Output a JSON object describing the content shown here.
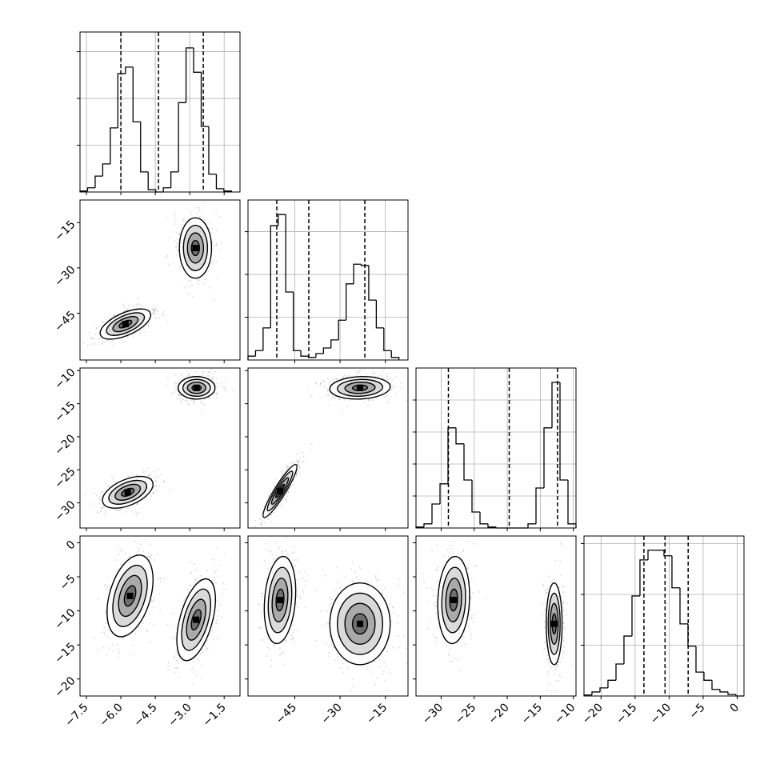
{
  "chart_data": {
    "type": "corner",
    "grid": true,
    "levels": [
      0.5,
      1,
      1.5,
      2
    ],
    "variables": [
      {
        "lim": [
          -7.78,
          -0.81
        ],
        "ticks": [
          {
            "value": -7.5,
            "label": "−7.5"
          },
          {
            "value": -6.0,
            "label": "−6.0"
          },
          {
            "value": -4.5,
            "label": "−4.5"
          },
          {
            "value": -3.0,
            "label": "−3.0"
          },
          {
            "value": -1.5,
            "label": "−1.5"
          }
        ]
      },
      {
        "lim": [
          -60.5,
          -7.5
        ],
        "ticks": [
          {
            "value": -45,
            "label": "−45"
          },
          {
            "value": -30,
            "label": "−30"
          },
          {
            "value": -15,
            "label": "−15"
          }
        ]
      },
      {
        "lim": [
          -33.8,
          -9.6
        ],
        "ticks": [
          {
            "value": -30,
            "label": "−30"
          },
          {
            "value": -25,
            "label": "−25"
          },
          {
            "value": -20,
            "label": "−20"
          },
          {
            "value": -15,
            "label": "−15"
          },
          {
            "value": -10,
            "label": "−10"
          }
        ]
      },
      {
        "lim": [
          -22.5,
          1.0
        ],
        "ticks": [
          {
            "value": -20,
            "label": "−20"
          },
          {
            "value": -15,
            "label": "−15"
          },
          {
            "value": -10,
            "label": "−10"
          },
          {
            "value": -5,
            "label": "−5"
          },
          0
        ]
      }
    ],
    "histograms": [
      {
        "bins": [
          -7.78,
          -7.45,
          -7.12,
          -6.79,
          -6.46,
          -6.13,
          -5.8,
          -5.47,
          -5.14,
          -4.81,
          -4.48,
          -4.15,
          -3.82,
          -3.49,
          -3.16,
          -2.83,
          -2.5,
          -2.17,
          -1.84,
          -1.51,
          -1.18
        ],
        "values": [
          0.02,
          0.09,
          0.34,
          0.6,
          1.37,
          2.53,
          2.67,
          1.5,
          0.43,
          0.05,
          0,
          0.09,
          0.43,
          1.91,
          3.08,
          2.56,
          1.4,
          0.38,
          0.07,
          0.02
        ],
        "ylim": [
          0,
          3.42
        ],
        "yticks": [
          1,
          2,
          3
        ],
        "quantiles": [
          -6.0,
          -4.36,
          -2.41
        ]
      },
      {
        "bins": [
          -60.5,
          -58,
          -55.5,
          -53,
          -50.5,
          -48,
          -45.5,
          -43,
          -40.5,
          -38,
          -35.5,
          -33,
          -30.5,
          -28,
          -25.5,
          -23,
          -20.5,
          -18,
          -15.5,
          -13,
          -10.5
        ],
        "values": [
          0.09,
          0.22,
          0.75,
          3.14,
          3.4,
          1.59,
          0.22,
          0.09,
          0.06,
          0.15,
          0.28,
          0.47,
          0.93,
          1.78,
          2.24,
          2.21,
          1.4,
          0.75,
          0.22,
          0.06
        ],
        "ylim": [
          0,
          3.74
        ],
        "yticks": [
          1,
          2,
          3
        ],
        "quantiles": [
          -50.96,
          -40.36,
          -21.8
        ]
      },
      {
        "bins": [
          -33.8,
          -32.59,
          -31.38,
          -30.17,
          -28.96,
          -27.75,
          -26.54,
          -25.33,
          -24.12,
          -22.91,
          -21.7,
          -20.49,
          -19.28,
          -18.07,
          -16.86,
          -15.65,
          -14.44,
          -13.23,
          -12.02,
          -10.81,
          -9.6
        ],
        "values": [
          0.03,
          0.13,
          0.75,
          1.38,
          3.13,
          2.63,
          1.5,
          0.5,
          0.13,
          0.03,
          0,
          0,
          0,
          0,
          0.13,
          1.25,
          3.13,
          4.55,
          1.5,
          0.13
        ],
        "ylim": [
          0,
          5
        ],
        "yticks": [
          1,
          2,
          3,
          4
        ],
        "quantiles": [
          -28.9,
          -19.7,
          -12.4
        ]
      },
      {
        "bins": [
          -22.5,
          -21.33,
          -20.15,
          -18.98,
          -17.8,
          -16.63,
          -15.45,
          -14.28,
          -13.1,
          -11.93,
          -10.75,
          -9.58,
          -8.4,
          -7.23,
          -6.05,
          -4.88,
          -3.7,
          -2.53,
          -1.35,
          -0.18,
          1.0
        ],
        "values": [
          0.02,
          0.08,
          0.16,
          0.31,
          0.63,
          1.18,
          1.97,
          2.68,
          2.87,
          2.87,
          2.76,
          2.13,
          1.42,
          0.98,
          0.47,
          0.31,
          0.13,
          0.08,
          0.03,
          0
        ],
        "ylim": [
          0,
          3.15
        ],
        "yticks": [
          1,
          2,
          3
        ],
        "quantiles": [
          -13.7,
          -10.6,
          -7.2
        ]
      }
    ],
    "pairs": [
      {
        "x": 0,
        "y": 1,
        "modes": [
          {
            "center": [
              -5.8,
              -48.6
            ],
            "sigma": [
              0.55,
              2.5
            ],
            "rho": 0.6
          },
          {
            "center": [
              -2.75,
              -23.4
            ],
            "sigma": [
              0.35,
              5
            ],
            "rho": 0
          }
        ]
      },
      {
        "x": 0,
        "y": 2,
        "modes": [
          {
            "center": [
              -5.7,
              -28.4
            ],
            "sigma": [
              0.55,
              1.2
            ],
            "rho": 0.5
          },
          {
            "center": [
              -2.7,
              -12.6
            ],
            "sigma": [
              0.4,
              0.85
            ],
            "rho": 0
          }
        ]
      },
      {
        "x": 1,
        "y": 2,
        "modes": [
          {
            "center": [
              -49.9,
              -28.2
            ],
            "sigma": [
              2.8,
              2
            ],
            "rho": 0.92
          },
          {
            "center": [
              -23.4,
              -12.6
            ],
            "sigma": [
              5,
              0.85
            ],
            "rho": 0.1
          }
        ]
      },
      {
        "x": 0,
        "y": 3,
        "modes": [
          {
            "center": [
              -5.6,
              -7.8
            ],
            "sigma": [
              0.5,
              3
            ],
            "rho": 0.4
          },
          {
            "center": [
              -2.72,
              -11.3
            ],
            "sigma": [
              0.42,
              3
            ],
            "rho": 0.5
          }
        ]
      },
      {
        "x": 1,
        "y": 3,
        "modes": [
          {
            "center": [
              -49.9,
              -8.4
            ],
            "sigma": [
              2.6,
              3.2
            ],
            "rho": 0.2
          },
          {
            "center": [
              -23.4,
              -11.9
            ],
            "sigma": [
              5,
              3
            ],
            "rho": 0
          }
        ]
      },
      {
        "x": 2,
        "y": 3,
        "modes": [
          {
            "center": [
              -28.1,
              -8.4
            ],
            "sigma": [
              1.2,
              3.2
            ],
            "rho": 0.1
          },
          {
            "center": [
              -12.9,
              -11.9
            ],
            "sigma": [
              0.6,
              3
            ],
            "rho": 0
          }
        ]
      }
    ]
  }
}
